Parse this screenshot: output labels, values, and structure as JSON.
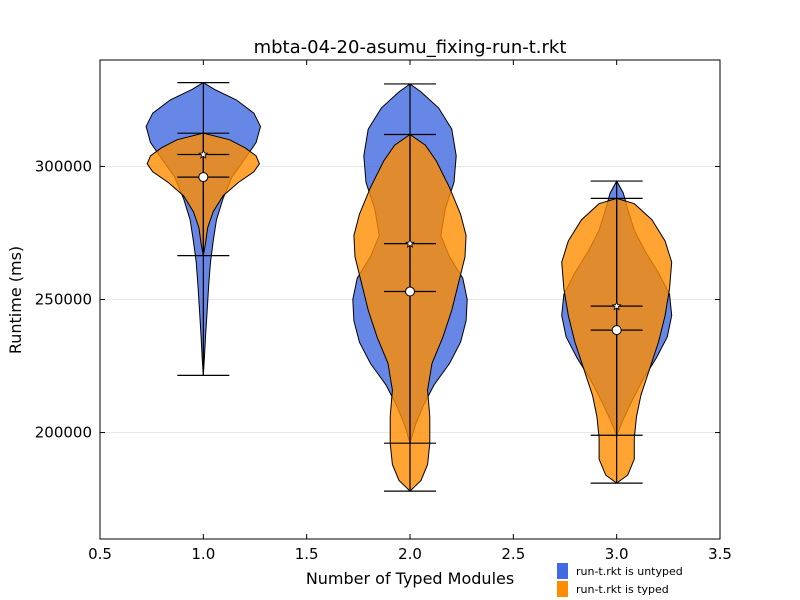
{
  "chart_data": {
    "type": "violin",
    "title": "mbta-04-20-asumu_fixing-run-t.rkt",
    "xlabel": "Number of Typed Modules",
    "ylabel": "Runtime (ms)",
    "xlim": [
      0.5,
      3.5
    ],
    "ylim": [
      160000,
      340000
    ],
    "xticks": [
      0.5,
      1.0,
      1.5,
      2.0,
      2.5,
      3.0,
      3.5
    ],
    "xtick_labels": [
      "0.5",
      "1.0",
      "1.5",
      "2.0",
      "2.5",
      "3.0",
      "3.5"
    ],
    "yticks": [
      200000,
      250000,
      300000
    ],
    "ytick_labels": [
      "200000",
      "250000",
      "300000"
    ],
    "grid": "horizontal",
    "legend_position": "below-right",
    "series": [
      {
        "name": "run-t.rkt is untyped",
        "color": "#4169e1",
        "violins": [
          {
            "x": 1.0,
            "min": 221500,
            "max": 331500,
            "mean": 296000,
            "profile": [
              [
                221500,
                0.0
              ],
              [
                228000,
                0.01
              ],
              [
                236000,
                0.02
              ],
              [
                246000,
                0.035
              ],
              [
                256000,
                0.05
              ],
              [
                264000,
                0.065
              ],
              [
                272000,
                0.09
              ],
              [
                280000,
                0.12
              ],
              [
                288000,
                0.18
              ],
              [
                296000,
                0.26
              ],
              [
                303000,
                0.38
              ],
              [
                309000,
                0.48
              ],
              [
                315000,
                0.52
              ],
              [
                320000,
                0.46
              ],
              [
                325000,
                0.3
              ],
              [
                329000,
                0.1
              ],
              [
                331500,
                0.0
              ]
            ]
          },
          {
            "x": 2.0,
            "min": 196000,
            "max": 331000,
            "mean": 253000,
            "profile": [
              [
                196000,
                0.0
              ],
              [
                203000,
                0.05
              ],
              [
                210000,
                0.12
              ],
              [
                218000,
                0.22
              ],
              [
                226000,
                0.36
              ],
              [
                234000,
                0.46
              ],
              [
                242000,
                0.51
              ],
              [
                250000,
                0.52
              ],
              [
                258000,
                0.48
              ],
              [
                266000,
                0.36
              ],
              [
                274000,
                0.28
              ],
              [
                284000,
                0.32
              ],
              [
                294000,
                0.4
              ],
              [
                304000,
                0.42
              ],
              [
                314000,
                0.38
              ],
              [
                322000,
                0.26
              ],
              [
                328000,
                0.1
              ],
              [
                331000,
                0.0
              ]
            ]
          },
          {
            "x": 3.0,
            "min": 199000,
            "max": 294500,
            "mean": 238500,
            "profile": [
              [
                199000,
                0.0
              ],
              [
                205000,
                0.06
              ],
              [
                212000,
                0.14
              ],
              [
                220000,
                0.24
              ],
              [
                228000,
                0.36
              ],
              [
                236000,
                0.46
              ],
              [
                244000,
                0.5
              ],
              [
                252000,
                0.48
              ],
              [
                260000,
                0.38
              ],
              [
                268000,
                0.26
              ],
              [
                276000,
                0.16
              ],
              [
                284000,
                0.1
              ],
              [
                290000,
                0.06
              ],
              [
                294500,
                0.0
              ]
            ]
          }
        ]
      },
      {
        "name": "run-t.rkt is typed",
        "color": "#ff8c00",
        "violins": [
          {
            "x": 1.0,
            "min": 266500,
            "max": 312500,
            "mean": 304500,
            "profile": [
              [
                266500,
                0.0
              ],
              [
                271000,
                0.02
              ],
              [
                277000,
                0.04
              ],
              [
                283000,
                0.09
              ],
              [
                289000,
                0.18
              ],
              [
                294000,
                0.32
              ],
              [
                298000,
                0.46
              ],
              [
                301000,
                0.51
              ],
              [
                304000,
                0.48
              ],
              [
                307000,
                0.38
              ],
              [
                310000,
                0.24
              ],
              [
                312500,
                0.0
              ]
            ]
          },
          {
            "x": 2.0,
            "min": 178000,
            "max": 312000,
            "mean": 271000,
            "profile": [
              [
                178000,
                0.0
              ],
              [
                182000,
                0.1
              ],
              [
                188000,
                0.16
              ],
              [
                196000,
                0.18
              ],
              [
                206000,
                0.18
              ],
              [
                216000,
                0.16
              ],
              [
                226000,
                0.2
              ],
              [
                236000,
                0.3
              ],
              [
                246000,
                0.38
              ],
              [
                256000,
                0.44
              ],
              [
                266000,
                0.5
              ],
              [
                274000,
                0.51
              ],
              [
                282000,
                0.46
              ],
              [
                292000,
                0.36
              ],
              [
                302000,
                0.24
              ],
              [
                308000,
                0.14
              ],
              [
                312000,
                0.0
              ]
            ]
          },
          {
            "x": 3.0,
            "min": 181000,
            "max": 288000,
            "mean": 247500,
            "profile": [
              [
                181000,
                0.0
              ],
              [
                184000,
                0.1
              ],
              [
                190000,
                0.16
              ],
              [
                198000,
                0.16
              ],
              [
                206000,
                0.18
              ],
              [
                214000,
                0.22
              ],
              [
                224000,
                0.3
              ],
              [
                234000,
                0.38
              ],
              [
                244000,
                0.44
              ],
              [
                254000,
                0.48
              ],
              [
                264000,
                0.5
              ],
              [
                272000,
                0.44
              ],
              [
                280000,
                0.32
              ],
              [
                286000,
                0.16
              ],
              [
                288000,
                0.0
              ]
            ]
          }
        ]
      }
    ]
  }
}
